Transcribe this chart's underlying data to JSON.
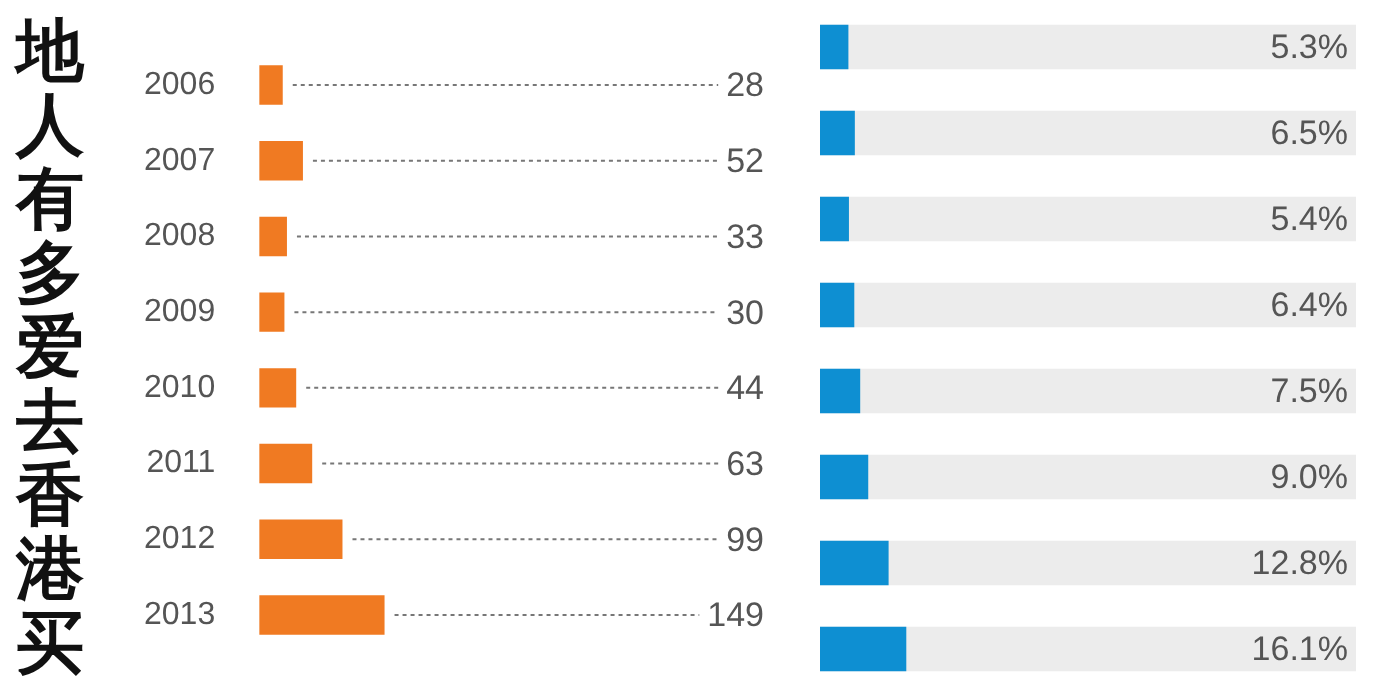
{
  "chart_data": [
    {
      "type": "bar",
      "title": "地人有多爱去香港买",
      "orientation": "horizontal",
      "categories": [
        "2006",
        "2007",
        "2008",
        "2009",
        "2010",
        "2011",
        "2012",
        "2013"
      ],
      "tick_labels": "y",
      "data_labels": true,
      "series": [
        {
          "color": "#f07a22",
          "values": [
            28,
            52,
            33,
            30,
            44,
            63,
            99,
            149
          ]
        }
      ]
    },
    {
      "type": "bar",
      "orientation": "horizontal",
      "categories": [
        "2006",
        "2007",
        "2008",
        "2009",
        "2010",
        "2011",
        "2012",
        "2013"
      ],
      "xlim": [
        0,
        100
      ],
      "tick_labels": false,
      "bands": [
        {
          "axis": "x",
          "from": 0,
          "to": 100,
          "color": "#ececec"
        }
      ],
      "series": [
        {
          "color": "#0e8fd2",
          "values": [
            5.3,
            6.5,
            5.4,
            6.4,
            7.5,
            9.0,
            12.8,
            16.1
          ],
          "value_labels": [
            "5.3%",
            "6.5%",
            "5.4%",
            "6.4%",
            "7.5%",
            "9.0%",
            "12.8%",
            "16.1%"
          ]
        }
      ]
    }
  ]
}
